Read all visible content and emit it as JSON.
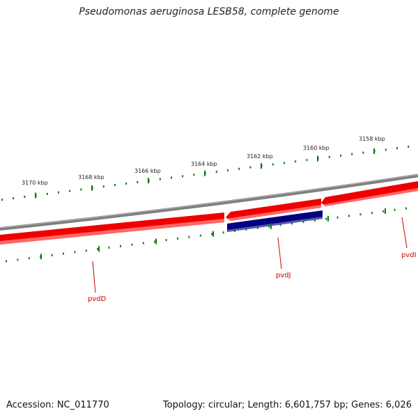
{
  "title": "Pseudomonas aeruginosa LESB58, complete genome",
  "accession": "Accession: NC_011770",
  "summary": "Topology: circular; Length: 6,601,757 bp; Genes: 6,026",
  "colors": {
    "backbone": "#7f7f7f",
    "forward_gene": "#ee0000",
    "reverse_gene": "#000080",
    "ticks": "#0a7a0a",
    "gene_label": "#cc0000"
  },
  "scale_labels": [
    "3170 kbp",
    "3168 kbp",
    "3166 kbp",
    "3164 kbp",
    "3162 kbp",
    "3160 kbp",
    "3158 kbp"
  ],
  "genes": [
    {
      "label": "pvdD",
      "strand": "forward"
    },
    {
      "label": "pvdJ",
      "strand": "forward"
    },
    {
      "label": "pvdI",
      "strand": "forward"
    },
    {
      "label": "",
      "strand": "reverse"
    }
  ]
}
